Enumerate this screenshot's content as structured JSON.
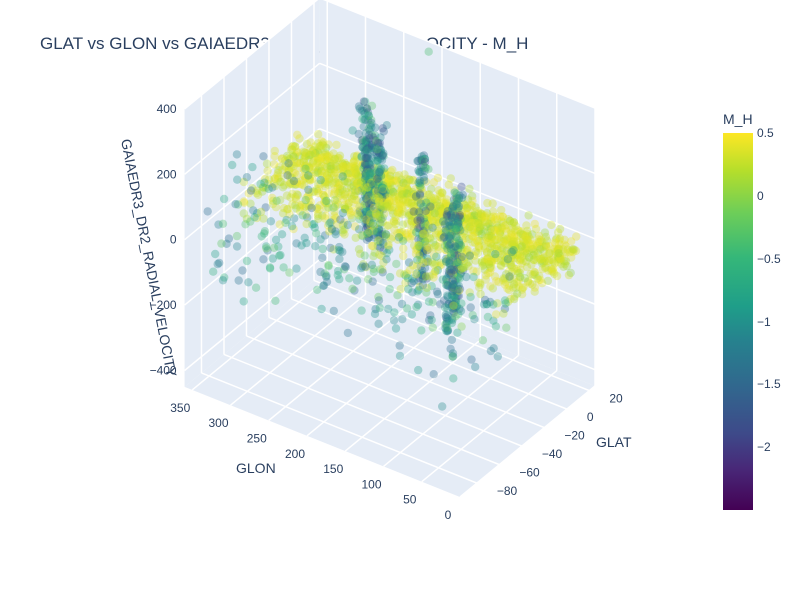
{
  "chart_data": {
    "type": "scatter3d",
    "title": "GLAT vs GLON vs GAIAEDR3_DR2_RADIAL_VELOCITY - M_H",
    "x_axis": {
      "label": "GLON",
      "range": [
        0,
        360
      ],
      "ticks": [
        "0",
        "50",
        "100",
        "150",
        "200",
        "250",
        "300",
        "350"
      ]
    },
    "y_axis": {
      "label": "GLAT",
      "range": [
        -95,
        25
      ],
      "ticks": [
        "−80",
        "−60",
        "−40",
        "−20",
        "0",
        "20"
      ]
    },
    "z_axis": {
      "label": "GAIAEDR3_DR2_RADIAL_VELOCITY",
      "range": [
        -450,
        400
      ],
      "ticks": [
        "−400",
        "−200",
        "0",
        "200",
        "400"
      ]
    },
    "colorbar": {
      "title": "M_H",
      "colorscale": "Viridis",
      "range": [
        -2.5,
        0.5
      ],
      "ticks": [
        "0.5",
        "0",
        "−0.5",
        "−1",
        "−1.5",
        "−2"
      ],
      "tick_values": [
        0.5,
        0,
        -0.5,
        -1,
        -1.5,
        -2
      ]
    },
    "grid": true,
    "marker_opacity": 0.35,
    "points_sample": [
      {
        "glon": 350,
        "glat": 10,
        "rv": -10,
        "m_h": 0.1
      },
      {
        "glon": 300,
        "glat": 5,
        "rv": 5,
        "m_h": 0.0
      },
      {
        "glon": 280,
        "glat": 0,
        "rv": 140,
        "m_h": -1.0
      },
      {
        "glon": 240,
        "glat": -5,
        "rv": 100,
        "m_h": -1.1
      },
      {
        "glon": 200,
        "glat": 0,
        "rv": 20,
        "m_h": -0.2
      },
      {
        "glon": 150,
        "glat": -20,
        "rv": -10,
        "m_h": -0.1
      },
      {
        "glon": 90,
        "glat": -40,
        "rv": -260,
        "m_h": -1.3
      },
      {
        "glon": 60,
        "glat": -60,
        "rv": -20,
        "m_h": 0.0
      },
      {
        "glon": 20,
        "glat": -80,
        "rv": 10,
        "m_h": -0.3
      }
    ]
  }
}
